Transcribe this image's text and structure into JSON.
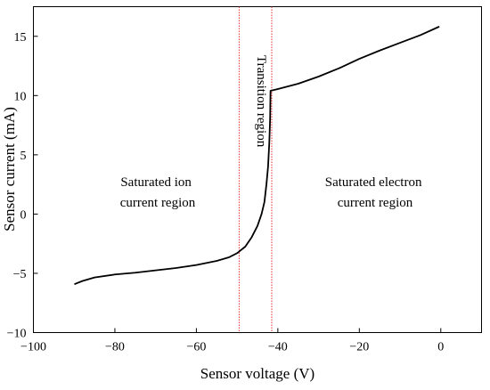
{
  "chart_data": {
    "type": "line",
    "xlabel": "Sensor voltage (V)",
    "ylabel": "Sensor current (mA)",
    "xlim": [
      -100,
      10
    ],
    "ylim": [
      -10,
      17.5
    ],
    "x_ticks": [
      -100,
      -80,
      -60,
      -40,
      -20,
      0
    ],
    "y_ticks": [
      -10,
      -5,
      0,
      5,
      10,
      15
    ],
    "x_tick_labels": [
      "−100",
      "−80",
      "−60",
      "−40",
      "−20",
      "0"
    ],
    "y_tick_labels": [
      "−10",
      "−5",
      "0",
      "5",
      "10",
      "15"
    ],
    "grid": false,
    "series": [
      {
        "color": "#000000",
        "points": [
          [
            -89.8,
            -5.9
          ],
          [
            -88,
            -5.65
          ],
          [
            -85,
            -5.35
          ],
          [
            -80,
            -5.1
          ],
          [
            -75,
            -4.95
          ],
          [
            -70,
            -4.75
          ],
          [
            -65,
            -4.55
          ],
          [
            -60,
            -4.3
          ],
          [
            -55,
            -3.95
          ],
          [
            -52,
            -3.65
          ],
          [
            -50,
            -3.3
          ],
          [
            -48,
            -2.75
          ],
          [
            -46.5,
            -2.0
          ],
          [
            -45,
            -1.0
          ],
          [
            -44,
            0.0
          ],
          [
            -43.3,
            1.0
          ],
          [
            -42.8,
            2.5
          ],
          [
            -42.4,
            4.0
          ],
          [
            -42.1,
            6.0
          ],
          [
            -41.9,
            8.0
          ],
          [
            -41.8,
            10.4
          ],
          [
            -40,
            10.55
          ],
          [
            -35,
            11.0
          ],
          [
            -30,
            11.6
          ],
          [
            -25,
            12.3
          ],
          [
            -20,
            13.1
          ],
          [
            -15,
            13.8
          ],
          [
            -10,
            14.45
          ],
          [
            -5,
            15.1
          ],
          [
            -0.5,
            15.8
          ]
        ]
      }
    ],
    "reference_lines": [
      {
        "x": -49.5,
        "color": "#e8312f",
        "style": "dotted"
      },
      {
        "x": -41.5,
        "color": "#e8312f",
        "style": "dotted"
      }
    ],
    "annotations": [
      {
        "id": "ion",
        "lines": [
          "Saturated ion",
          "current region"
        ]
      },
      {
        "id": "transition",
        "lines": [
          "Transition region"
        ]
      },
      {
        "id": "electron",
        "lines": [
          "Saturated electron",
          "current region"
        ]
      }
    ]
  }
}
